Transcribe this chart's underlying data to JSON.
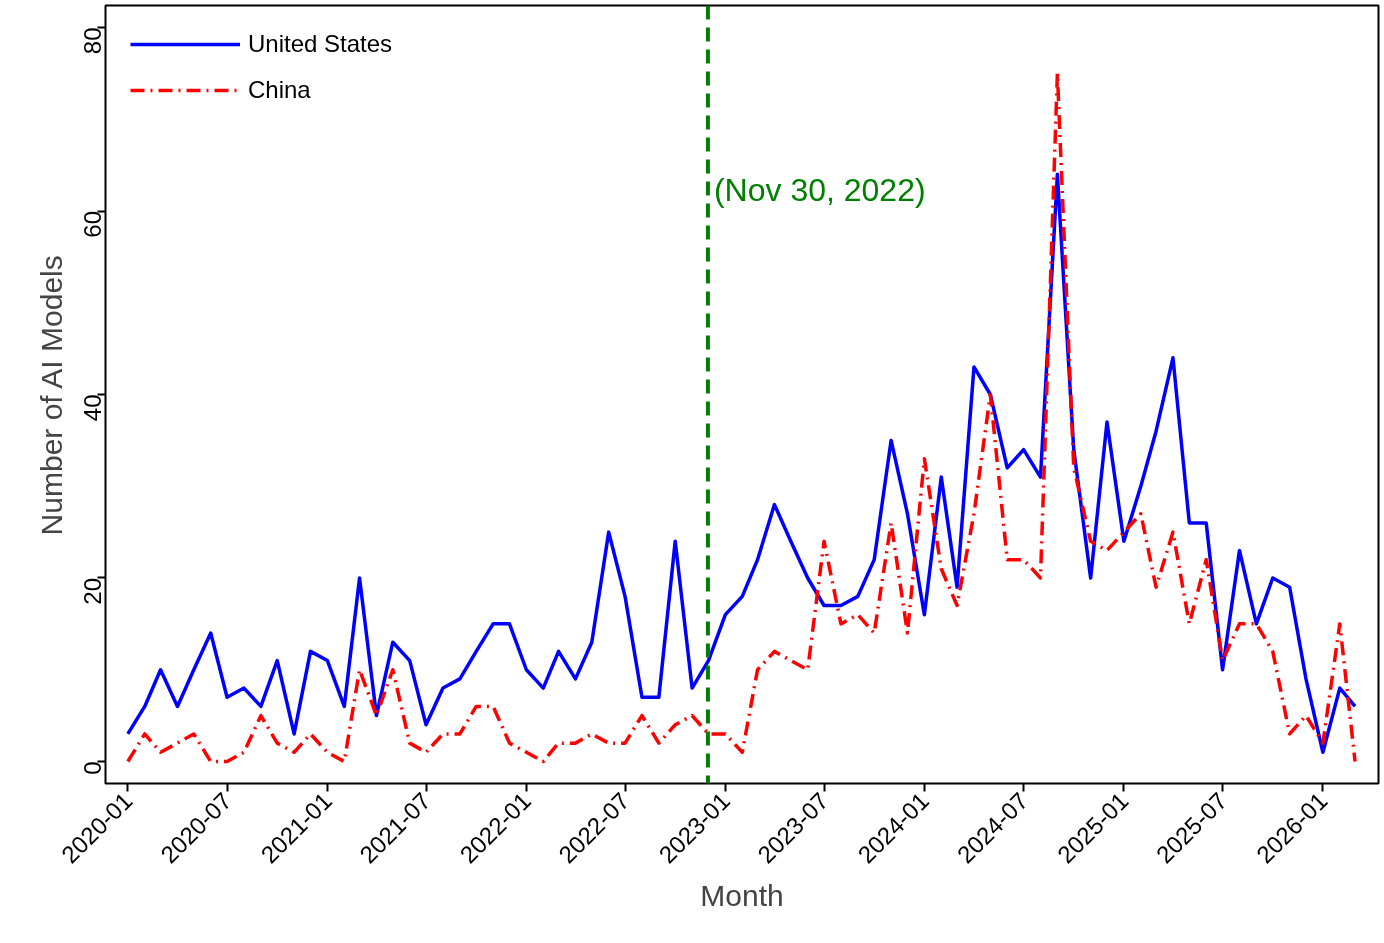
{
  "chart_data": {
    "type": "line",
    "xlabel": "Month",
    "ylabel": "Number of AI Models",
    "x": [
      "2020-01",
      "2020-02",
      "2020-03",
      "2020-04",
      "2020-05",
      "2020-06",
      "2020-07",
      "2020-08",
      "2020-09",
      "2020-10",
      "2020-11",
      "2020-12",
      "2021-01",
      "2021-02",
      "2021-03",
      "2021-04",
      "2021-05",
      "2021-06",
      "2021-07",
      "2021-08",
      "2021-09",
      "2021-10",
      "2021-11",
      "2021-12",
      "2022-01",
      "2022-02",
      "2022-03",
      "2022-04",
      "2022-05",
      "2022-06",
      "2022-07",
      "2022-08",
      "2022-09",
      "2022-10",
      "2022-11",
      "2022-12",
      "2023-01",
      "2023-02",
      "2023-03",
      "2023-04",
      "2023-05",
      "2023-06",
      "2023-07",
      "2023-08",
      "2023-09",
      "2023-10",
      "2023-11",
      "2023-12",
      "2024-01",
      "2024-02",
      "2024-03",
      "2024-04",
      "2024-05",
      "2024-06",
      "2024-07",
      "2024-08",
      "2024-09",
      "2024-10",
      "2024-11",
      "2024-12",
      "2025-01",
      "2025-02",
      "2025-03",
      "2025-04",
      "2025-05",
      "2025-06",
      "2025-07",
      "2025-08",
      "2025-09",
      "2025-10",
      "2025-11",
      "2025-12",
      "2026-01",
      "2026-02",
      "2026-03"
    ],
    "series": [
      {
        "name": "United States",
        "color": "#0000ff",
        "line_style": "solid",
        "values": [
          3,
          6,
          10,
          6,
          10,
          14,
          7,
          8,
          6,
          11,
          3,
          12,
          11,
          6,
          20,
          5,
          13,
          11,
          4,
          8,
          9,
          12,
          15,
          15,
          10,
          8,
          12,
          9,
          13,
          25,
          18,
          7,
          7,
          24,
          8,
          11,
          16,
          18,
          22,
          28,
          24,
          20,
          17,
          17,
          18,
          22,
          35,
          27,
          16,
          31,
          19,
          43,
          40,
          32,
          34,
          31,
          64,
          34,
          20,
          37,
          24,
          30,
          36,
          44,
          26,
          26,
          10,
          23,
          15,
          20,
          19,
          9,
          1,
          8,
          6
        ]
      },
      {
        "name": "China",
        "color": "#ff0000",
        "line_style": "dashed",
        "values": [
          0,
          3,
          1,
          2,
          3,
          0,
          0,
          1,
          5,
          2,
          1,
          3,
          1,
          0,
          10,
          5,
          10,
          2,
          1,
          3,
          3,
          6,
          6,
          2,
          1,
          0,
          2,
          2,
          3,
          2,
          2,
          5,
          2,
          4,
          5,
          3,
          3,
          1,
          10,
          12,
          11,
          10,
          24,
          15,
          16,
          14,
          26,
          14,
          33,
          21,
          17,
          27,
          40,
          22,
          22,
          20,
          75,
          32,
          24,
          23,
          25,
          27,
          19,
          25,
          15,
          22,
          11,
          15,
          15,
          12,
          3,
          5,
          2,
          15,
          0
        ]
      }
    ],
    "xlim": [
      "2019-11-21",
      "2026-04-13"
    ],
    "xticks": [
      "2020-01",
      "2020-07",
      "2021-01",
      "2021-07",
      "2022-01",
      "2022-07",
      "2023-01",
      "2023-07",
      "2024-01",
      "2024-07",
      "2025-01",
      "2025-07",
      "2026-01"
    ],
    "ylim": [
      -2.4,
      82.4
    ],
    "yticks": [
      0,
      20,
      40,
      60,
      80
    ],
    "ref_lines": [
      {
        "axis": "x",
        "value": "2022-11-30",
        "label": "(Nov 30, 2022)",
        "color": "#008000",
        "line_style": "dashed"
      }
    ],
    "grid": false,
    "legend": "top left"
  }
}
